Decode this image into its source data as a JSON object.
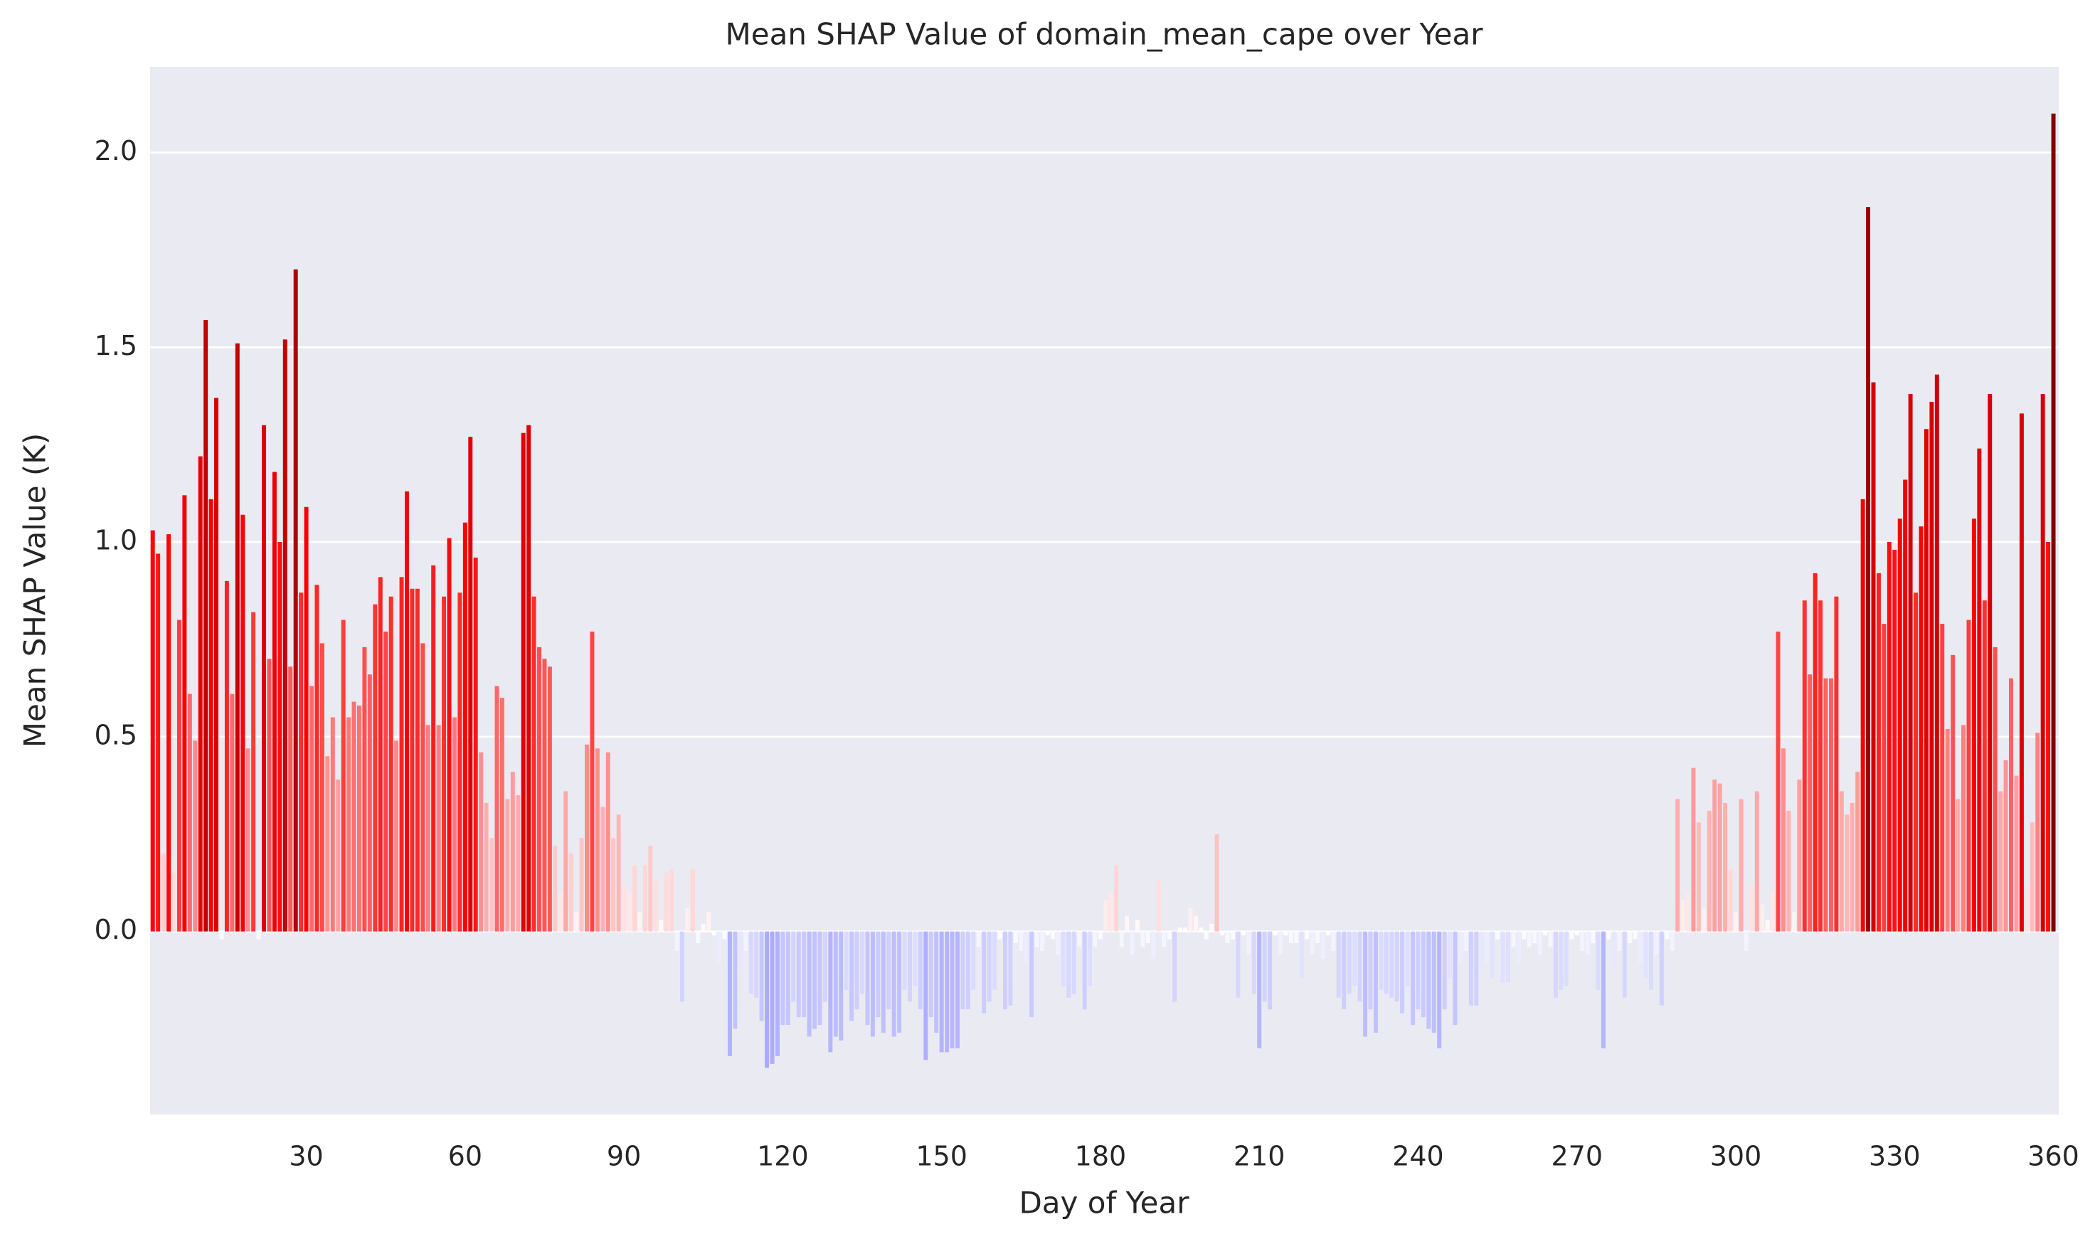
{
  "chart_data": {
    "type": "bar",
    "title": "Mean SHAP Value of domain_mean_cape over Year",
    "x_label": "Day of Year",
    "y_label": "Mean SHAP Value (K)",
    "x": [
      1,
      2,
      3,
      4,
      5,
      6,
      7,
      8,
      9,
      10,
      11,
      12,
      13,
      14,
      15,
      16,
      17,
      18,
      19,
      20,
      21,
      22,
      23,
      24,
      25,
      26,
      27,
      28,
      29,
      30,
      31,
      32,
      33,
      34,
      35,
      36,
      37,
      38,
      39,
      40,
      41,
      42,
      43,
      44,
      45,
      46,
      47,
      48,
      49,
      50,
      51,
      52,
      53,
      54,
      55,
      56,
      57,
      58,
      59,
      60,
      61,
      62,
      63,
      64,
      65,
      66,
      67,
      68,
      69,
      70,
      71,
      72,
      73,
      74,
      75,
      76,
      77,
      78,
      79,
      80,
      81,
      82,
      83,
      84,
      85,
      86,
      87,
      88,
      89,
      90,
      91,
      92,
      93,
      94,
      95,
      96,
      97,
      98,
      99,
      100,
      101,
      102,
      103,
      104,
      105,
      106,
      107,
      108,
      109,
      110,
      111,
      112,
      113,
      114,
      115,
      116,
      117,
      118,
      119,
      120,
      121,
      122,
      123,
      124,
      125,
      126,
      127,
      128,
      129,
      130,
      131,
      132,
      133,
      134,
      135,
      136,
      137,
      138,
      139,
      140,
      141,
      142,
      143,
      144,
      145,
      146,
      147,
      148,
      149,
      150,
      151,
      152,
      153,
      154,
      155,
      156,
      157,
      158,
      159,
      160,
      161,
      162,
      163,
      164,
      165,
      166,
      167,
      168,
      169,
      170,
      171,
      172,
      173,
      174,
      175,
      176,
      177,
      178,
      179,
      180,
      181,
      182,
      183,
      184,
      185,
      186,
      187,
      188,
      189,
      190,
      191,
      192,
      193,
      194,
      195,
      196,
      197,
      198,
      199,
      200,
      201,
      202,
      203,
      204,
      205,
      206,
      207,
      208,
      209,
      210,
      211,
      212,
      213,
      214,
      215,
      216,
      217,
      218,
      219,
      220,
      221,
      222,
      223,
      224,
      225,
      226,
      227,
      228,
      229,
      230,
      231,
      232,
      233,
      234,
      235,
      236,
      237,
      238,
      239,
      240,
      241,
      242,
      243,
      244,
      245,
      246,
      247,
      248,
      249,
      250,
      251,
      252,
      253,
      254,
      255,
      256,
      257,
      258,
      259,
      260,
      261,
      262,
      263,
      264,
      265,
      266,
      267,
      268,
      269,
      270,
      271,
      272,
      273,
      274,
      275,
      276,
      277,
      278,
      279,
      280,
      281,
      282,
      283,
      284,
      285,
      286,
      287,
      288,
      289,
      290,
      291,
      292,
      293,
      294,
      295,
      296,
      297,
      298,
      299,
      300,
      301,
      302,
      303,
      304,
      305,
      306,
      307,
      308,
      309,
      310,
      311,
      312,
      313,
      314,
      315,
      316,
      317,
      318,
      319,
      320,
      321,
      322,
      323,
      324,
      325,
      326,
      327,
      328,
      329,
      330,
      331,
      332,
      333,
      334,
      335,
      336,
      337,
      338,
      339,
      340,
      341,
      342,
      343,
      344,
      345,
      346,
      347,
      348,
      349,
      350,
      351,
      352,
      353,
      354,
      355,
      356,
      357,
      358,
      359,
      360
    ],
    "values": [
      1.03,
      0.97,
      0.2,
      1.02,
      0.15,
      0.8,
      1.12,
      0.61,
      0.49,
      1.22,
      1.57,
      1.11,
      1.37,
      -0.02,
      0.9,
      0.61,
      1.51,
      1.07,
      0.47,
      0.82,
      -0.02,
      1.3,
      0.7,
      1.18,
      1.0,
      1.52,
      0.68,
      1.7,
      0.87,
      1.09,
      0.63,
      0.89,
      0.74,
      0.45,
      0.55,
      0.39,
      0.8,
      0.55,
      0.59,
      0.58,
      0.73,
      0.66,
      0.84,
      0.91,
      0.77,
      0.86,
      0.49,
      0.91,
      1.13,
      0.88,
      0.88,
      0.74,
      0.53,
      0.94,
      0.53,
      0.86,
      1.01,
      0.55,
      0.87,
      1.05,
      1.27,
      0.96,
      0.46,
      0.33,
      0.24,
      0.63,
      0.6,
      0.34,
      0.41,
      0.35,
      1.28,
      1.3,
      0.86,
      0.73,
      0.7,
      0.68,
      0.22,
      0.1,
      0.36,
      0.2,
      0.05,
      0.24,
      0.48,
      0.77,
      0.47,
      0.32,
      0.46,
      0.24,
      0.3,
      0.12,
      0.1,
      0.17,
      0.05,
      0.17,
      0.22,
      0.13,
      0.03,
      0.15,
      0.16,
      -0.05,
      -0.18,
      0.06,
      0.16,
      -0.03,
      0.02,
      0.05,
      -0.01,
      -0.08,
      -0.02,
      -0.32,
      -0.25,
      -0.1,
      -0.05,
      -0.16,
      -0.17,
      -0.23,
      -0.35,
      -0.34,
      -0.32,
      -0.24,
      -0.24,
      -0.18,
      -0.22,
      -0.22,
      -0.27,
      -0.25,
      -0.24,
      -0.18,
      -0.31,
      -0.27,
      -0.28,
      -0.15,
      -0.23,
      -0.2,
      -0.16,
      -0.24,
      -0.27,
      -0.22,
      -0.26,
      -0.2,
      -0.27,
      -0.26,
      -0.15,
      -0.18,
      -0.14,
      -0.2,
      -0.33,
      -0.22,
      -0.26,
      -0.31,
      -0.31,
      -0.3,
      -0.3,
      -0.2,
      -0.2,
      -0.15,
      -0.04,
      -0.21,
      -0.18,
      -0.15,
      -0.02,
      -0.2,
      -0.19,
      -0.03,
      -0.05,
      -0.08,
      -0.22,
      -0.04,
      -0.05,
      -0.01,
      -0.02,
      -0.06,
      -0.14,
      -0.17,
      -0.16,
      -0.04,
      -0.2,
      -0.14,
      -0.04,
      -0.02,
      0.08,
      0.1,
      0.17,
      -0.04,
      0.04,
      -0.06,
      0.03,
      -0.04,
      -0.03,
      -0.07,
      0.13,
      -0.04,
      -0.02,
      -0.18,
      0.01,
      0.01,
      0.06,
      0.04,
      0.01,
      -0.02,
      0.02,
      0.25,
      -0.01,
      -0.03,
      -0.02,
      -0.17,
      -0.01,
      -0.06,
      -0.16,
      -0.3,
      -0.18,
      -0.2,
      -0.01,
      -0.06,
      -0.01,
      -0.03,
      -0.03,
      -0.12,
      -0.02,
      -0.06,
      -0.03,
      -0.07,
      -0.01,
      -0.05,
      -0.17,
      -0.2,
      -0.16,
      -0.14,
      -0.18,
      -0.27,
      -0.2,
      -0.26,
      -0.15,
      -0.16,
      -0.17,
      -0.18,
      -0.21,
      -0.14,
      -0.24,
      -0.2,
      -0.22,
      -0.25,
      -0.26,
      -0.3,
      -0.2,
      -0.12,
      -0.24,
      -0.08,
      -0.05,
      -0.19,
      -0.19,
      -0.1,
      -0.08,
      -0.12,
      -0.02,
      -0.13,
      -0.13,
      -0.04,
      -0.08,
      -0.02,
      -0.04,
      -0.03,
      -0.06,
      -0.01,
      -0.04,
      -0.17,
      -0.15,
      -0.14,
      -0.02,
      -0.01,
      -0.05,
      -0.06,
      -0.03,
      -0.15,
      -0.3,
      -0.02,
      -0.1,
      -0.05,
      -0.17,
      -0.03,
      -0.02,
      -0.08,
      -0.12,
      -0.15,
      -0.06,
      -0.19,
      -0.02,
      -0.05,
      0.34,
      0.08,
      0.1,
      0.42,
      0.28,
      0.06,
      0.31,
      0.39,
      0.38,
      0.33,
      0.16,
      0.05,
      0.34,
      -0.05,
      0.12,
      0.36,
      0.07,
      0.03,
      0.1,
      0.77,
      0.47,
      0.31,
      0.05,
      0.39,
      0.85,
      0.66,
      0.92,
      0.85,
      0.65,
      0.65,
      0.86,
      0.36,
      0.3,
      0.33,
      0.41,
      1.11,
      1.86,
      1.41,
      0.92,
      0.79,
      1.0,
      0.98,
      1.06,
      1.16,
      1.38,
      0.87,
      1.04,
      1.29,
      1.36,
      1.43,
      0.79,
      0.52,
      0.71,
      0.34,
      0.53,
      0.8,
      1.06,
      1.24,
      0.85,
      1.38,
      0.73,
      0.36,
      0.44,
      0.65,
      0.4,
      1.33,
      0.12,
      0.28,
      0.51,
      1.38,
      1.0,
      2.1
    ],
    "colors": [
      "#00004d",
      "#0000ff",
      "#ffffff",
      "#ff0000",
      "#800000"
    ],
    "color_limits": [
      -2.1,
      2.1
    ],
    "xlim": [
      0.5,
      361
    ],
    "xticks": [
      30,
      60,
      90,
      120,
      150,
      180,
      210,
      240,
      270,
      300,
      330,
      360
    ],
    "ylim": [
      -0.47,
      2.22
    ],
    "yticks": [
      {
        "value": 0,
        "label": "0.0"
      },
      0.5,
      {
        "value": 1,
        "label": "1.0"
      },
      1.5,
      {
        "value": 2,
        "label": "2.0"
      }
    ],
    "grid": "y"
  }
}
